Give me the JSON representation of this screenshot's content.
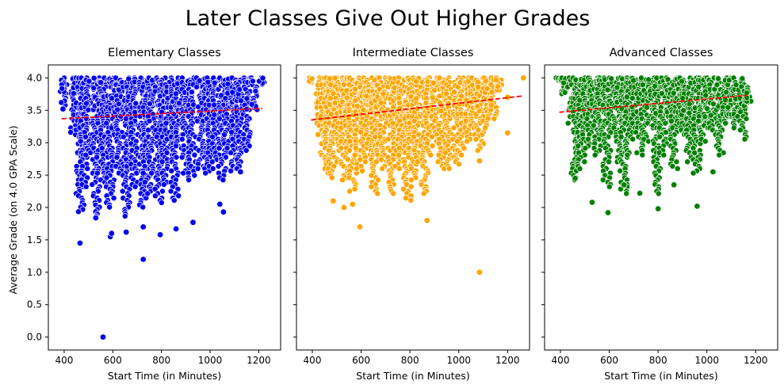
{
  "figure": {
    "title": "Later Classes Give Out Higher Grades"
  },
  "chart_data": [
    {
      "type": "scatter",
      "title": "Elementary Classes",
      "xlabel": "Start Time (in Minutes)",
      "ylabel": "Average Grade (on 4.0 GPA Scale)",
      "xlim": [
        335,
        1290
      ],
      "ylim": [
        -0.2,
        4.2
      ],
      "xticks": [
        400,
        600,
        800,
        1000,
        1200
      ],
      "yticks": [
        0.0,
        0.5,
        1.0,
        1.5,
        2.0,
        2.5,
        3.0,
        3.5,
        4.0
      ],
      "grid": false,
      "color": "#0000ee",
      "trend": {
        "x": [
          390,
          1215
        ],
        "y": [
          3.37,
          3.53
        ],
        "color": "#ff0000",
        "style": "dashed"
      },
      "columns": [
        {
          "x": 395,
          "ymin": 3.55,
          "ymax": 4.0
        },
        {
          "x": 440,
          "ymin": 3.1,
          "ymax": 4.0
        },
        {
          "x": 465,
          "ymin": 1.93,
          "ymax": 4.0
        },
        {
          "x": 480,
          "ymin": 2.3,
          "ymax": 4.0
        },
        {
          "x": 495,
          "ymin": 2.8,
          "ymax": 4.0
        },
        {
          "x": 530,
          "ymin": 1.85,
          "ymax": 4.0
        },
        {
          "x": 550,
          "ymin": 2.5,
          "ymax": 4.0
        },
        {
          "x": 565,
          "ymin": 2.3,
          "ymax": 4.0
        },
        {
          "x": 590,
          "ymin": 1.98,
          "ymax": 4.0
        },
        {
          "x": 610,
          "ymin": 3.2,
          "ymax": 4.0
        },
        {
          "x": 625,
          "ymin": 2.5,
          "ymax": 4.0
        },
        {
          "x": 655,
          "ymin": 1.85,
          "ymax": 4.0
        },
        {
          "x": 670,
          "ymin": 2.6,
          "ymax": 4.0
        },
        {
          "x": 690,
          "ymin": 2.3,
          "ymax": 4.0
        },
        {
          "x": 725,
          "ymin": 1.98,
          "ymax": 4.0
        },
        {
          "x": 740,
          "ymin": 2.2,
          "ymax": 4.0
        },
        {
          "x": 760,
          "ymin": 2.5,
          "ymax": 4.0
        },
        {
          "x": 790,
          "ymin": 2.05,
          "ymax": 4.0
        },
        {
          "x": 810,
          "ymin": 2.35,
          "ymax": 4.0
        },
        {
          "x": 830,
          "ymin": 2.8,
          "ymax": 4.0
        },
        {
          "x": 855,
          "ymin": 2.1,
          "ymax": 4.0
        },
        {
          "x": 875,
          "ymin": 2.9,
          "ymax": 4.0
        },
        {
          "x": 900,
          "ymin": 2.5,
          "ymax": 4.0
        },
        {
          "x": 925,
          "ymin": 2.4,
          "ymax": 4.0
        },
        {
          "x": 960,
          "ymin": 2.6,
          "ymax": 4.0
        },
        {
          "x": 985,
          "ymin": 2.5,
          "ymax": 4.0
        },
        {
          "x": 1000,
          "ymin": 2.6,
          "ymax": 4.0
        },
        {
          "x": 1025,
          "ymin": 2.7,
          "ymax": 4.0
        },
        {
          "x": 1050,
          "ymin": 2.4,
          "ymax": 4.0
        },
        {
          "x": 1075,
          "ymin": 2.9,
          "ymax": 4.0
        },
        {
          "x": 1100,
          "ymin": 2.55,
          "ymax": 4.0
        },
        {
          "x": 1125,
          "ymin": 2.6,
          "ymax": 4.0
        },
        {
          "x": 1150,
          "ymin": 2.85,
          "ymax": 4.0
        },
        {
          "x": 1180,
          "ymin": 3.5,
          "ymax": 4.0
        },
        {
          "x": 1210,
          "ymin": 3.9,
          "ymax": 4.0
        }
      ],
      "points": [
        {
          "x": 395,
          "y": 3.52
        },
        {
          "x": 465,
          "y": 1.45
        },
        {
          "x": 530,
          "y": 1.84
        },
        {
          "x": 560,
          "y": 0.0
        },
        {
          "x": 590,
          "y": 1.55
        },
        {
          "x": 595,
          "y": 1.6
        },
        {
          "x": 655,
          "y": 1.62
        },
        {
          "x": 725,
          "y": 1.7
        },
        {
          "x": 725,
          "y": 1.2
        },
        {
          "x": 795,
          "y": 1.58
        },
        {
          "x": 860,
          "y": 1.67
        },
        {
          "x": 930,
          "y": 1.77
        },
        {
          "x": 1055,
          "y": 1.93
        },
        {
          "x": 1040,
          "y": 2.05
        },
        {
          "x": 1125,
          "y": 2.55
        }
      ]
    },
    {
      "type": "scatter",
      "title": "Intermediate Classes",
      "xlabel": "Start Time (in Minutes)",
      "ylabel": "",
      "xlim": [
        335,
        1290
      ],
      "ylim": [
        -0.2,
        4.2
      ],
      "xticks": [
        400,
        600,
        800,
        1000,
        1200
      ],
      "yticks": [
        0.0,
        0.5,
        1.0,
        1.5,
        2.0,
        2.5,
        3.0,
        3.5,
        4.0
      ],
      "grid": false,
      "color": "#ffa500",
      "trend": {
        "x": [
          395,
          1260
        ],
        "y": [
          3.35,
          3.72
        ],
        "color": "#ff0000",
        "style": "dashed"
      },
      "columns": [
        {
          "x": 395,
          "ymin": 3.9,
          "ymax": 4.0
        },
        {
          "x": 430,
          "ymin": 3.1,
          "ymax": 4.0
        },
        {
          "x": 450,
          "ymin": 2.7,
          "ymax": 4.0
        },
        {
          "x": 465,
          "ymin": 2.5,
          "ymax": 4.0
        },
        {
          "x": 480,
          "ymin": 2.45,
          "ymax": 4.0
        },
        {
          "x": 500,
          "ymin": 2.7,
          "ymax": 4.0
        },
        {
          "x": 530,
          "ymin": 2.4,
          "ymax": 4.0
        },
        {
          "x": 545,
          "ymin": 2.9,
          "ymax": 4.0
        },
        {
          "x": 565,
          "ymin": 2.25,
          "ymax": 4.0
        },
        {
          "x": 590,
          "ymin": 2.55,
          "ymax": 4.0
        },
        {
          "x": 610,
          "ymin": 2.7,
          "ymax": 4.0
        },
        {
          "x": 630,
          "ymin": 2.8,
          "ymax": 4.0
        },
        {
          "x": 655,
          "ymin": 2.2,
          "ymax": 4.0
        },
        {
          "x": 670,
          "ymin": 2.7,
          "ymax": 4.0
        },
        {
          "x": 690,
          "ymin": 2.6,
          "ymax": 4.0
        },
        {
          "x": 725,
          "ymin": 2.2,
          "ymax": 4.0
        },
        {
          "x": 745,
          "ymin": 2.6,
          "ymax": 4.0
        },
        {
          "x": 765,
          "ymin": 2.8,
          "ymax": 4.0
        },
        {
          "x": 790,
          "ymin": 2.1,
          "ymax": 4.0
        },
        {
          "x": 810,
          "ymin": 2.4,
          "ymax": 4.0
        },
        {
          "x": 830,
          "ymin": 2.7,
          "ymax": 4.0
        },
        {
          "x": 860,
          "ymin": 2.2,
          "ymax": 4.0
        },
        {
          "x": 880,
          "ymin": 2.8,
          "ymax": 4.0
        },
        {
          "x": 900,
          "ymin": 3.0,
          "ymax": 4.0
        },
        {
          "x": 930,
          "ymin": 2.6,
          "ymax": 4.0
        },
        {
          "x": 960,
          "ymin": 2.6,
          "ymax": 4.0
        },
        {
          "x": 990,
          "ymin": 2.65,
          "ymax": 4.0
        },
        {
          "x": 1010,
          "ymin": 2.8,
          "ymax": 4.0
        },
        {
          "x": 1040,
          "ymin": 3.0,
          "ymax": 4.0
        },
        {
          "x": 1060,
          "ymin": 3.1,
          "ymax": 4.0
        },
        {
          "x": 1085,
          "ymin": 2.85,
          "ymax": 4.0
        },
        {
          "x": 1110,
          "ymin": 3.2,
          "ymax": 4.0
        },
        {
          "x": 1140,
          "ymin": 3.35,
          "ymax": 4.0
        },
        {
          "x": 1160,
          "ymin": 3.8,
          "ymax": 4.0
        }
      ],
      "points": [
        {
          "x": 1265,
          "y": 4.0
        },
        {
          "x": 485,
          "y": 2.1
        },
        {
          "x": 530,
          "y": 2.0
        },
        {
          "x": 565,
          "y": 2.05
        },
        {
          "x": 595,
          "y": 1.7
        },
        {
          "x": 870,
          "y": 1.8
        },
        {
          "x": 1085,
          "y": 2.72
        },
        {
          "x": 1085,
          "y": 1.0
        },
        {
          "x": 1200,
          "y": 3.15
        },
        {
          "x": 1200,
          "y": 3.7
        }
      ]
    },
    {
      "type": "scatter",
      "title": "Advanced Classes",
      "xlabel": "Start Time (in Minutes)",
      "ylabel": "",
      "xlim": [
        335,
        1290
      ],
      "ylim": [
        -0.2,
        4.2
      ],
      "xticks": [
        400,
        600,
        800,
        1000,
        1200
      ],
      "yticks": [
        0.0,
        0.5,
        1.0,
        1.5,
        2.0,
        2.5,
        3.0,
        3.5,
        4.0
      ],
      "grid": false,
      "color": "#008000",
      "trend": {
        "x": [
          395,
          1165
        ],
        "y": [
          3.47,
          3.73
        ],
        "color": "#ff0000",
        "style": "dashed"
      },
      "columns": [
        {
          "x": 395,
          "ymin": 3.95,
          "ymax": 4.0
        },
        {
          "x": 420,
          "ymin": 3.75,
          "ymax": 4.0
        },
        {
          "x": 445,
          "ymin": 3.3,
          "ymax": 4.0
        },
        {
          "x": 460,
          "ymin": 2.4,
          "ymax": 4.0
        },
        {
          "x": 485,
          "ymin": 2.6,
          "ymax": 4.0
        },
        {
          "x": 505,
          "ymin": 2.9,
          "ymax": 4.0
        },
        {
          "x": 525,
          "ymin": 3.05,
          "ymax": 4.0
        },
        {
          "x": 550,
          "ymin": 2.8,
          "ymax": 4.0
        },
        {
          "x": 565,
          "ymin": 3.1,
          "ymax": 4.0
        },
        {
          "x": 590,
          "ymin": 2.3,
          "ymax": 4.0
        },
        {
          "x": 610,
          "ymin": 3.3,
          "ymax": 4.0
        },
        {
          "x": 635,
          "ymin": 2.7,
          "ymax": 4.0
        },
        {
          "x": 660,
          "ymin": 2.2,
          "ymax": 4.0
        },
        {
          "x": 680,
          "ymin": 2.8,
          "ymax": 4.0
        },
        {
          "x": 700,
          "ymin": 3.2,
          "ymax": 4.0
        },
        {
          "x": 725,
          "ymin": 2.8,
          "ymax": 4.0
        },
        {
          "x": 745,
          "ymin": 3.0,
          "ymax": 4.0
        },
        {
          "x": 770,
          "ymin": 3.2,
          "ymax": 4.0
        },
        {
          "x": 795,
          "ymin": 2.2,
          "ymax": 4.0
        },
        {
          "x": 820,
          "ymin": 2.8,
          "ymax": 4.0
        },
        {
          "x": 845,
          "ymin": 3.1,
          "ymax": 4.0
        },
        {
          "x": 865,
          "ymin": 2.6,
          "ymax": 4.0
        },
        {
          "x": 885,
          "ymin": 3.3,
          "ymax": 4.0
        },
        {
          "x": 905,
          "ymin": 3.1,
          "ymax": 4.0
        },
        {
          "x": 930,
          "ymin": 2.7,
          "ymax": 4.0
        },
        {
          "x": 960,
          "ymin": 2.5,
          "ymax": 4.0
        },
        {
          "x": 980,
          "ymin": 3.0,
          "ymax": 4.0
        },
        {
          "x": 1000,
          "ymin": 3.2,
          "ymax": 4.0
        },
        {
          "x": 1025,
          "ymin": 3.1,
          "ymax": 4.0
        },
        {
          "x": 1055,
          "ymin": 2.8,
          "ymax": 4.0
        },
        {
          "x": 1075,
          "ymin": 3.3,
          "ymax": 4.0
        },
        {
          "x": 1100,
          "ymin": 3.2,
          "ymax": 4.0
        },
        {
          "x": 1125,
          "ymin": 3.4,
          "ymax": 4.0
        },
        {
          "x": 1150,
          "ymin": 3.05,
          "ymax": 4.0
        },
        {
          "x": 1165,
          "ymin": 3.55,
          "ymax": 3.85
        }
      ],
      "points": [
        {
          "x": 460,
          "y": 2.45
        },
        {
          "x": 530,
          "y": 2.08
        },
        {
          "x": 595,
          "y": 1.92
        },
        {
          "x": 660,
          "y": 2.35
        },
        {
          "x": 725,
          "y": 2.22
        },
        {
          "x": 800,
          "y": 1.98
        },
        {
          "x": 865,
          "y": 2.35
        },
        {
          "x": 960,
          "y": 2.02
        },
        {
          "x": 1025,
          "y": 2.55
        }
      ]
    }
  ]
}
